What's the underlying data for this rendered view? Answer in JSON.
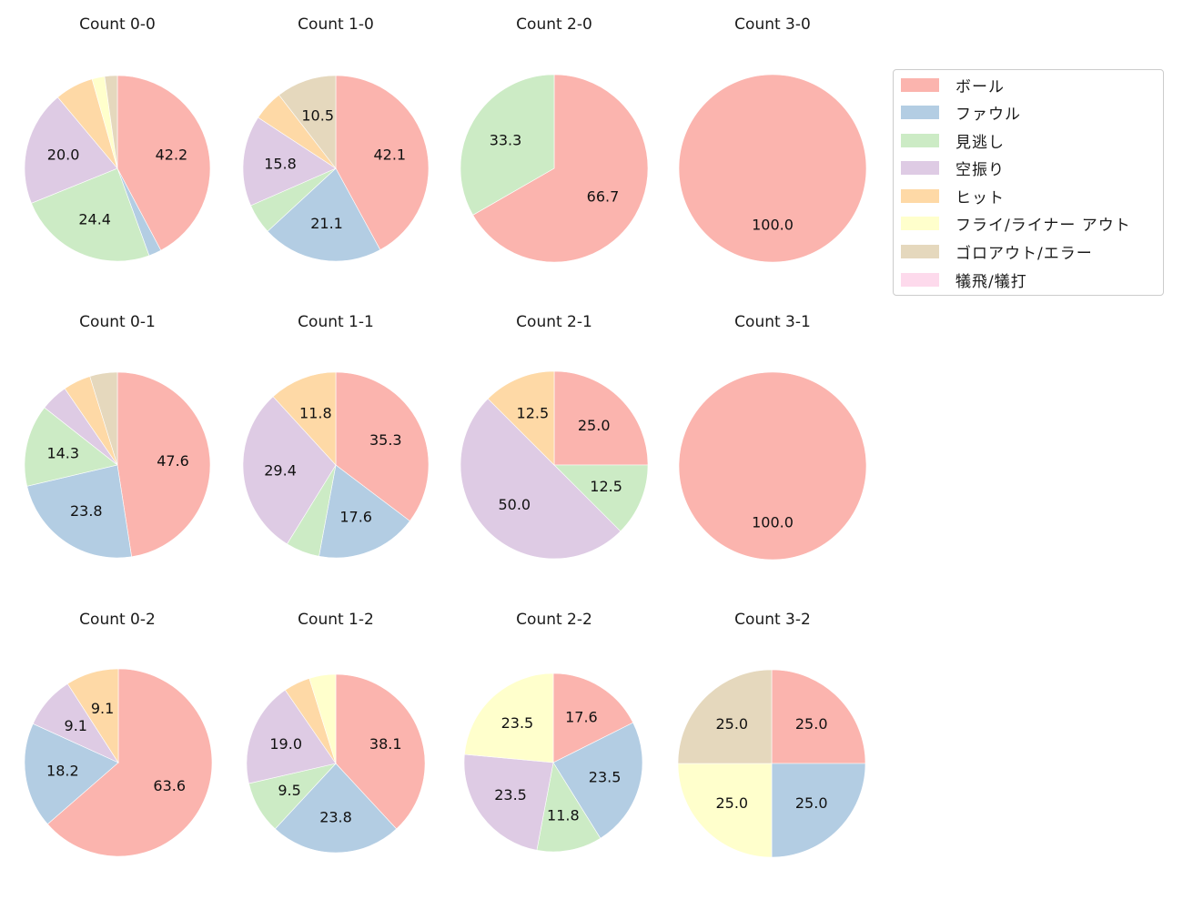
{
  "legend": {
    "items": [
      {
        "label": "ボール",
        "color": "#fbb4ae"
      },
      {
        "label": "ファウル",
        "color": "#b3cde3"
      },
      {
        "label": "見逃し",
        "color": "#ccebc5"
      },
      {
        "label": "空振り",
        "color": "#decbe4"
      },
      {
        "label": "ヒット",
        "color": "#fed9a6"
      },
      {
        "label": "フライ/ライナー アウト",
        "color": "#ffffcc"
      },
      {
        "label": "ゴロアウト/エラー",
        "color": "#e5d8bd"
      },
      {
        "label": "犠飛/犠打",
        "color": "#fddaec"
      }
    ]
  },
  "chart_data": {
    "type": "pie",
    "categories": [
      "ボール",
      "ファウル",
      "見逃し",
      "空振り",
      "ヒット",
      "フライ/ライナー アウト",
      "ゴロアウト/エラー",
      "犠飛/犠打"
    ],
    "colors": [
      "#fbb4ae",
      "#b3cde3",
      "#ccebc5",
      "#decbe4",
      "#fed9a6",
      "#ffffcc",
      "#e5d8bd",
      "#fddaec"
    ],
    "start_angle": 90,
    "direction": "clockwise",
    "label_threshold_pct": 8,
    "charts": [
      {
        "title": "Count 0-0",
        "values": [
          42.2,
          2.2,
          24.4,
          20.0,
          6.7,
          2.2,
          2.2,
          0
        ],
        "labels": [
          "42.2",
          "",
          "24.4",
          "20.0",
          "",
          "",
          "",
          ""
        ]
      },
      {
        "title": "Count 1-0",
        "values": [
          42.1,
          21.1,
          5.3,
          15.8,
          5.3,
          0,
          10.5,
          0
        ],
        "labels": [
          "42.1",
          "21.1",
          "",
          "15.8",
          "",
          "",
          "10.5",
          ""
        ]
      },
      {
        "title": "Count 2-0",
        "values": [
          66.7,
          0,
          33.3,
          0,
          0,
          0,
          0,
          0
        ],
        "labels": [
          "66.7",
          "",
          "33.3",
          "",
          "",
          "",
          "",
          ""
        ]
      },
      {
        "title": "Count 3-0",
        "values": [
          100.0,
          0,
          0,
          0,
          0,
          0,
          0,
          0
        ],
        "labels": [
          "100.0",
          "",
          "",
          "",
          "",
          "",
          "",
          ""
        ]
      },
      {
        "title": "Count 0-1",
        "values": [
          47.6,
          23.8,
          14.3,
          4.8,
          4.8,
          0,
          4.8,
          0
        ],
        "labels": [
          "47.6",
          "23.8",
          "14.3",
          "",
          "",
          "",
          "",
          ""
        ]
      },
      {
        "title": "Count 1-1",
        "values": [
          35.3,
          17.6,
          5.9,
          29.4,
          11.8,
          0,
          0,
          0
        ],
        "labels": [
          "35.3",
          "17.6",
          "",
          "29.4",
          "11.8",
          "",
          "",
          ""
        ]
      },
      {
        "title": "Count 2-1",
        "values": [
          25.0,
          0,
          12.5,
          50.0,
          12.5,
          0,
          0,
          0
        ],
        "labels": [
          "25.0",
          "",
          "12.5",
          "50.0",
          "12.5",
          "",
          "",
          ""
        ]
      },
      {
        "title": "Count 3-1",
        "values": [
          100.0,
          0,
          0,
          0,
          0,
          0,
          0,
          0
        ],
        "labels": [
          "100.0",
          "",
          "",
          "",
          "",
          "",
          "",
          ""
        ]
      },
      {
        "title": "Count 0-2",
        "values": [
          63.6,
          18.2,
          0,
          9.1,
          9.1,
          0,
          0,
          0
        ],
        "labels": [
          "63.6",
          "18.2",
          "",
          "9.1",
          "9.1",
          "",
          "",
          ""
        ]
      },
      {
        "title": "Count 1-2",
        "values": [
          38.1,
          23.8,
          9.5,
          19.0,
          4.8,
          4.8,
          0,
          0
        ],
        "labels": [
          "38.1",
          "23.8",
          "9.5",
          "19.0",
          "",
          "",
          "",
          ""
        ]
      },
      {
        "title": "Count 2-2",
        "values": [
          17.6,
          23.5,
          11.8,
          23.5,
          0,
          23.5,
          0,
          0
        ],
        "labels": [
          "17.6",
          "23.5",
          "11.8",
          "23.5",
          "",
          "23.5",
          "",
          ""
        ]
      },
      {
        "title": "Count 3-2",
        "values": [
          25.0,
          25.0,
          0,
          0,
          0,
          25.0,
          25.0,
          0
        ],
        "labels": [
          "25.0",
          "25.0",
          "",
          "",
          "",
          "25.0",
          "25.0",
          ""
        ]
      }
    ]
  }
}
